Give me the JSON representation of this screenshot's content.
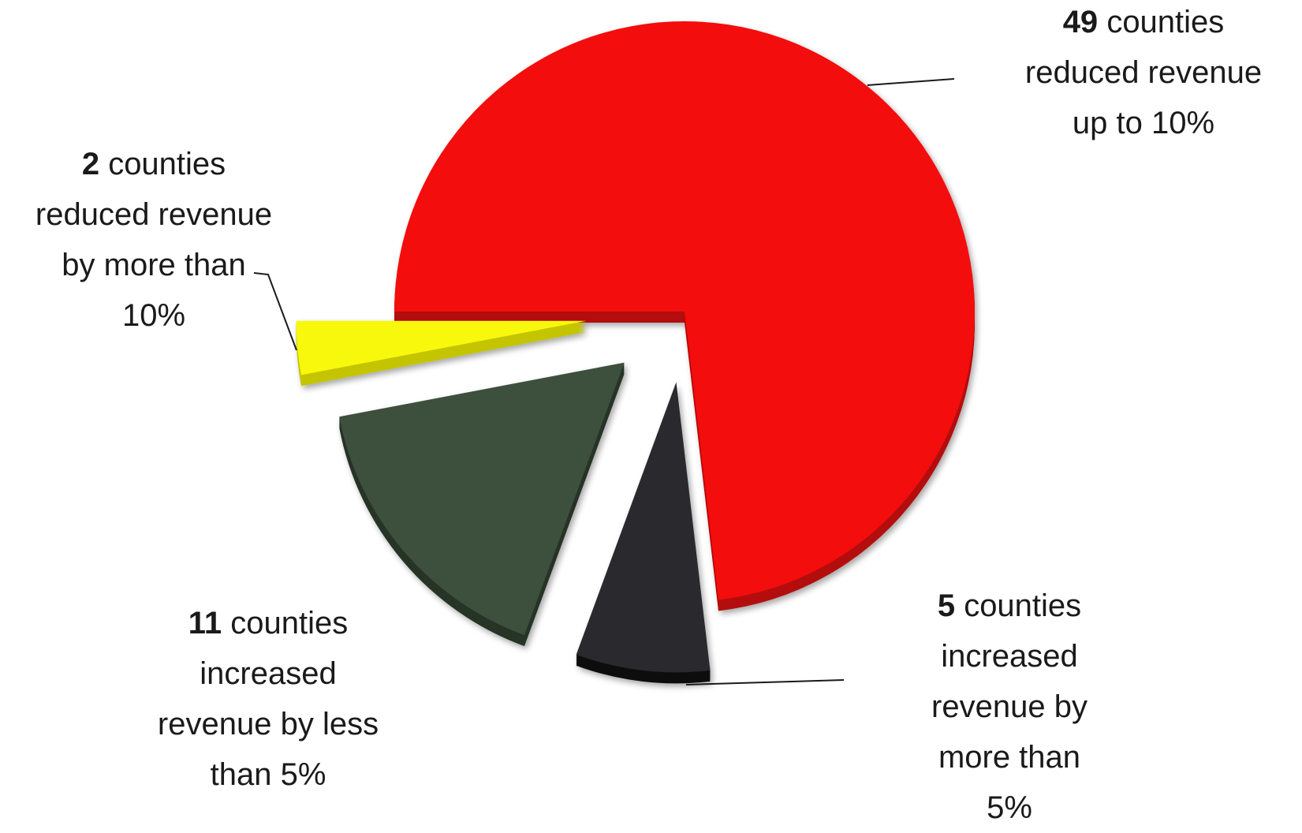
{
  "chart_data": {
    "type": "pie",
    "title": "",
    "slices": [
      {
        "count": "49",
        "value": 49,
        "label_lines": [
          "counties",
          "reduced revenue",
          "up to 10%"
        ],
        "color": "#f30c0c",
        "side_color": "#b30808"
      },
      {
        "count": "5",
        "value": 5,
        "label_lines": [
          "counties",
          "increased",
          "revenue by",
          "more than",
          "5%"
        ],
        "color": "#2a2a2e",
        "side_color": "#0e0e10"
      },
      {
        "count": "11",
        "value": 11,
        "label_lines": [
          "counties",
          "increased",
          "revenue by less",
          "than 5%"
        ],
        "color": "#3c4f3c",
        "side_color": "#273427"
      },
      {
        "count": "2",
        "value": 2,
        "label_lines": [
          "counties",
          "reduced revenue",
          "by more than",
          "10%"
        ],
        "color": "#f8f810",
        "side_color": "#c4c400"
      }
    ]
  }
}
